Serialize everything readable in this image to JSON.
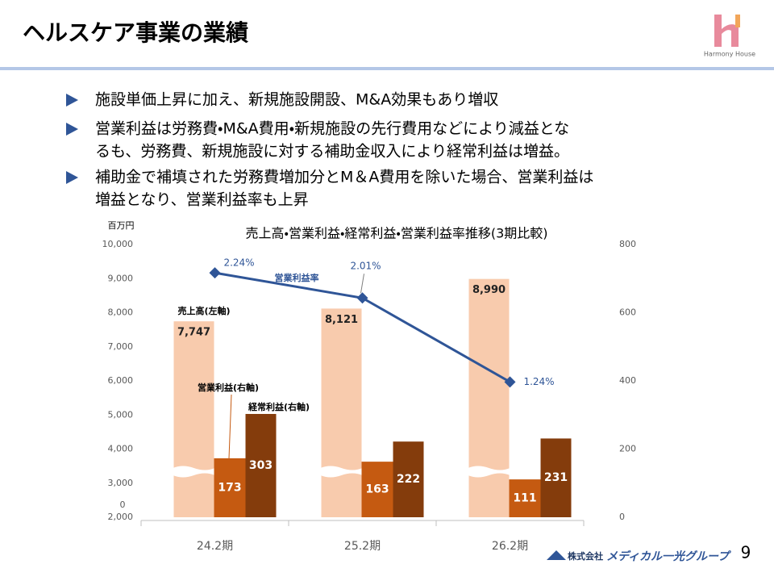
{
  "header": {
    "title": "ヘルスケア事業の業績",
    "logo_text": "Harmony House"
  },
  "bullets": [
    {
      "lines": [
        "施設単価上昇に加え、新規施設開設、M&A効果もあり増収"
      ]
    },
    {
      "lines": [
        "営業利益は労務費・M&A費用・新規施設の先行費用などにより減益とな",
        "るも、労務費、新規施設に対する補助金収入により経常利益は増益。"
      ]
    },
    {
      "lines": [
        "補助金で補填された労務費増加分とM＆A費用を除いた場合、営業利益は",
        "増益となり、営業利益率も上昇"
      ]
    }
  ],
  "chart_data": {
    "type": "combo",
    "title": "売上高・営業利益・経常利益・営業利益率推移(3期比較)",
    "y_unit": "百万円",
    "y_break_label": "0",
    "categories": [
      "24.2期",
      "25.2期",
      "26.2期"
    ],
    "ylim": [
      2000,
      10000
    ],
    "yticks": [
      {
        "value": 2000,
        "label": "2,000"
      },
      {
        "value": 3000,
        "label": "3,000"
      },
      {
        "value": 4000,
        "label": "4,000"
      },
      {
        "value": 5000,
        "label": "5,000"
      },
      {
        "value": 6000,
        "label": "6,000"
      },
      {
        "value": 7000,
        "label": "7,000"
      },
      {
        "value": 8000,
        "label": "8,000"
      },
      {
        "value": 9000,
        "label": "9,000"
      },
      {
        "value": 10000,
        "label": "10,000"
      }
    ],
    "y2lim": [
      0,
      800
    ],
    "y2ticks": [
      0,
      200,
      400,
      600,
      800
    ],
    "y3lim": [
      0,
      2.5
    ],
    "series": [
      {
        "name": "売上高(左軸)",
        "type": "bar",
        "color": "#f8cbad",
        "values": [
          7747,
          8121,
          8990
        ],
        "value_labels": [
          "7,747",
          "8,121",
          "8,990"
        ]
      },
      {
        "name": "営業利益(右軸)",
        "type": "bar",
        "axis": "y2",
        "color": "#c55a11",
        "values": [
          173,
          163,
          111
        ]
      },
      {
        "name": "経常利益(右軸)",
        "type": "bar",
        "axis": "y2",
        "color": "#843c0c",
        "values": [
          303,
          222,
          231
        ]
      },
      {
        "name": "営業利益率",
        "type": "line",
        "axis": "y3",
        "color": "#2f5597",
        "values": [
          2.24,
          2.01,
          1.24
        ],
        "value_labels": [
          "2.24%",
          "2.01%",
          "1.24%"
        ]
      }
    ]
  },
  "footer": {
    "company_prefix": "株式会社",
    "company_name": "メディカル一光グループ",
    "page_number": "9"
  }
}
